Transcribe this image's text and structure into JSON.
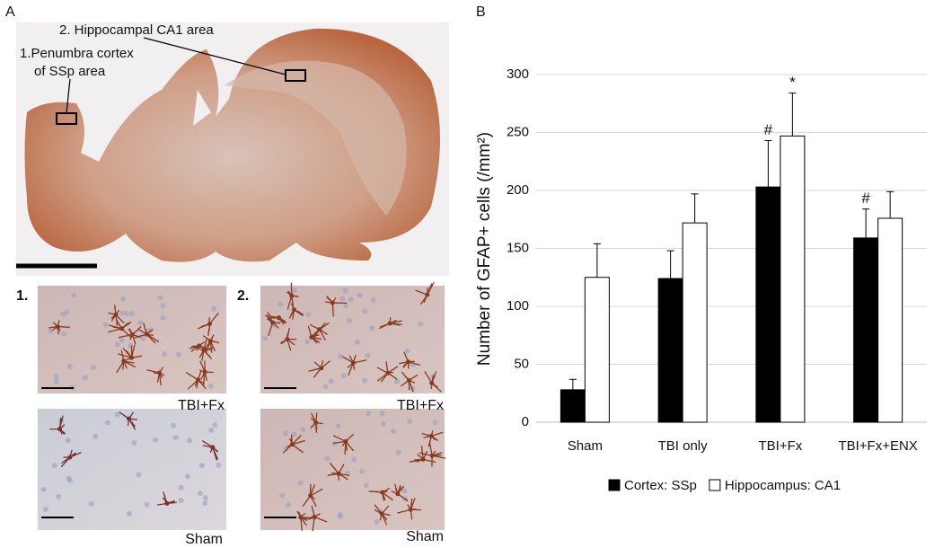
{
  "panel_a": {
    "label": "A",
    "callouts": [
      "2. Hippocampal CA1 area",
      "1.Penumbra cortex",
      "of SSp area"
    ],
    "insets": [
      {
        "number": "1.",
        "top": "TBI+Fx",
        "bottom": "Sham"
      },
      {
        "number": "2.",
        "top": "TBI+Fx",
        "bottom": "Sham"
      }
    ]
  },
  "chart_data": {
    "type": "bar",
    "panel_label": "B",
    "categories": [
      "Sham",
      "TBI only",
      "TBI+Fx",
      "TBI+Fx+ENX"
    ],
    "series": [
      {
        "name": "Cortex: SSp",
        "color": "#000000",
        "values": [
          28,
          124,
          203,
          159
        ],
        "errors": [
          9,
          24,
          40,
          25
        ],
        "annotations": [
          null,
          null,
          "#",
          "#"
        ]
      },
      {
        "name": "Hippocampus: CA1",
        "color": "#ffffff",
        "values": [
          125,
          172,
          247,
          176
        ],
        "errors": [
          29,
          25,
          37,
          23
        ],
        "annotations": [
          null,
          null,
          "*",
          null
        ]
      }
    ],
    "ylabel": "Number of GFAP+ cells (/mm²)",
    "ylim": [
      0,
      300
    ],
    "yticks": [
      0,
      50,
      100,
      150,
      200,
      250,
      300
    ],
    "grid": true,
    "legend": "bottom"
  }
}
